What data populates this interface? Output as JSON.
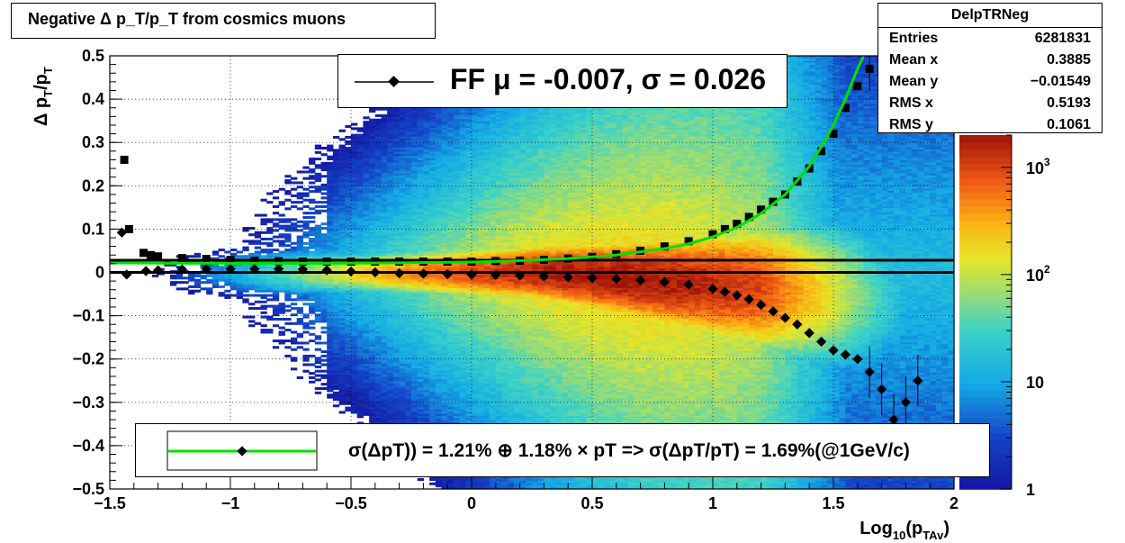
{
  "title": "Negative Δ p_T/p_T from cosmics muons",
  "stats": {
    "name": "DelpTRNeg",
    "rows": [
      {
        "label": "Entries",
        "value": "6281831"
      },
      {
        "label": "Mean x",
        "value": "0.3885"
      },
      {
        "label": "Mean y",
        "value": "−0.01549"
      },
      {
        "label": "RMS x",
        "value": "0.5193"
      },
      {
        "label": "RMS y",
        "value": "0.1061"
      }
    ]
  },
  "legend_top": "FF μ = -0.007, σ =   0.026",
  "legend_bottom": "σ(ΔpT)) =  1.21% ⊕  1.18% × pT => σ(ΔpT/pT) =  1.69%(@1GeV/c)",
  "colors": {
    "fit_line": "#00e000",
    "markers": "#000000",
    "frame": "#000000"
  },
  "chart_data": {
    "type": "heatmap",
    "xlabel": "Log10(pTAv)",
    "ylabel": "Δ pT/pT",
    "xlim": [
      -1.5,
      2
    ],
    "ylim": [
      -0.5,
      0.5
    ],
    "x_ticks": [
      {
        "v": -1.5,
        "label": "−1.5"
      },
      {
        "v": -1,
        "label": "−1"
      },
      {
        "v": -0.5,
        "label": "−0.5"
      },
      {
        "v": 0,
        "label": "0"
      },
      {
        "v": 0.5,
        "label": "0.5"
      },
      {
        "v": 1,
        "label": "1"
      },
      {
        "v": 1.5,
        "label": "1.5"
      },
      {
        "v": 2,
        "label": "2"
      }
    ],
    "y_ticks": [
      {
        "v": 0.5,
        "label": "0.5"
      },
      {
        "v": 0.4,
        "label": "0.4"
      },
      {
        "v": 0.3,
        "label": "0.3"
      },
      {
        "v": 0.2,
        "label": "0.2"
      },
      {
        "v": 0.1,
        "label": "0.1"
      },
      {
        "v": 0,
        "label": "0"
      },
      {
        "v": -0.1,
        "label": "−0.1"
      },
      {
        "v": -0.2,
        "label": "−0.2"
      },
      {
        "v": -0.3,
        "label": "−0.3"
      },
      {
        "v": -0.4,
        "label": "−0.4"
      },
      {
        "v": -0.5,
        "label": "−0.5"
      }
    ],
    "z_scale": "log",
    "z_range": [
      1,
      2000
    ],
    "z_ticks": [
      {
        "v": 1,
        "label": "1"
      },
      {
        "v": 10,
        "label": "10"
      },
      {
        "v": 100,
        "label": "10^2"
      },
      {
        "v": 1000,
        "label": "10^3"
      }
    ],
    "grid": true,
    "horizontal_lines": [
      0.028,
      0
    ],
    "sigma_points": [
      [
        -1.44,
        0.26
      ],
      [
        -1.42,
        0.1
      ],
      [
        -1.36,
        0.045
      ],
      [
        -1.33,
        0.04
      ],
      [
        -1.3,
        0.037
      ],
      [
        -1.2,
        0.033
      ],
      [
        -1.1,
        0.031
      ],
      [
        -1.0,
        0.029
      ],
      [
        -0.9,
        0.027
      ],
      [
        -0.8,
        0.026
      ],
      [
        -0.7,
        0.025
      ],
      [
        -0.6,
        0.025
      ],
      [
        -0.5,
        0.025
      ],
      [
        -0.4,
        0.025
      ],
      [
        -0.3,
        0.025
      ],
      [
        -0.2,
        0.025
      ],
      [
        -0.1,
        0.025
      ],
      [
        0.0,
        0.025
      ],
      [
        0.1,
        0.026
      ],
      [
        0.2,
        0.027
      ],
      [
        0.3,
        0.029
      ],
      [
        0.4,
        0.032
      ],
      [
        0.5,
        0.036
      ],
      [
        0.6,
        0.042
      ],
      [
        0.7,
        0.05
      ],
      [
        0.8,
        0.06
      ],
      [
        0.9,
        0.072
      ],
      [
        1.0,
        0.088
      ],
      [
        1.05,
        0.1
      ],
      [
        1.1,
        0.112
      ],
      [
        1.15,
        0.128
      ],
      [
        1.2,
        0.145
      ],
      [
        1.25,
        0.163
      ],
      [
        1.3,
        0.18
      ],
      [
        1.35,
        0.21
      ],
      [
        1.4,
        0.24
      ],
      [
        1.45,
        0.28
      ],
      [
        1.5,
        0.32
      ],
      [
        1.55,
        0.38
      ],
      [
        1.6,
        0.43
      ],
      [
        1.65,
        0.47
      ],
      [
        1.7,
        0.49
      ],
      [
        1.75,
        0.5
      ]
    ],
    "mean_points": [
      [
        -1.45,
        0.092
      ],
      [
        -1.43,
        -0.005
      ],
      [
        -1.35,
        0.003
      ],
      [
        -1.3,
        0.005
      ],
      [
        -1.2,
        0.007
      ],
      [
        -1.1,
        0.008
      ],
      [
        -1.0,
        0.008
      ],
      [
        -0.9,
        0.008
      ],
      [
        -0.8,
        0.008
      ],
      [
        -0.7,
        0.007
      ],
      [
        -0.6,
        0.005
      ],
      [
        -0.5,
        0.002
      ],
      [
        -0.4,
        0.0
      ],
      [
        -0.3,
        -0.002
      ],
      [
        -0.2,
        -0.003
      ],
      [
        -0.1,
        -0.004
      ],
      [
        0.0,
        -0.005
      ],
      [
        0.1,
        -0.006
      ],
      [
        0.2,
        -0.007
      ],
      [
        0.3,
        -0.009
      ],
      [
        0.4,
        -0.011
      ],
      [
        0.5,
        -0.013
      ],
      [
        0.6,
        -0.015
      ],
      [
        0.7,
        -0.018
      ],
      [
        0.8,
        -0.022
      ],
      [
        0.9,
        -0.028
      ],
      [
        1.0,
        -0.038
      ],
      [
        1.05,
        -0.045
      ],
      [
        1.1,
        -0.053
      ],
      [
        1.15,
        -0.062
      ],
      [
        1.2,
        -0.075
      ],
      [
        1.25,
        -0.09
      ],
      [
        1.3,
        -0.105
      ],
      [
        1.35,
        -0.12
      ],
      [
        1.4,
        -0.14
      ],
      [
        1.45,
        -0.16
      ],
      [
        1.5,
        -0.18
      ],
      [
        1.55,
        -0.19
      ],
      [
        1.6,
        -0.2
      ],
      [
        1.65,
        -0.23
      ],
      [
        1.7,
        -0.27
      ],
      [
        1.75,
        -0.34
      ],
      [
        1.8,
        -0.3
      ],
      [
        1.85,
        -0.25
      ]
    ],
    "fit_curve": [
      [
        -1.5,
        0.022
      ],
      [
        -1.2,
        0.021
      ],
      [
        -0.9,
        0.021
      ],
      [
        -0.6,
        0.021
      ],
      [
        -0.3,
        0.022
      ],
      [
        0.0,
        0.024
      ],
      [
        0.2,
        0.027
      ],
      [
        0.4,
        0.032
      ],
      [
        0.6,
        0.04
      ],
      [
        0.8,
        0.055
      ],
      [
        0.9,
        0.066
      ],
      [
        1.0,
        0.082
      ],
      [
        1.1,
        0.104
      ],
      [
        1.2,
        0.136
      ],
      [
        1.3,
        0.18
      ],
      [
        1.4,
        0.245
      ],
      [
        1.45,
        0.29
      ],
      [
        1.5,
        0.34
      ],
      [
        1.55,
        0.4
      ],
      [
        1.6,
        0.47
      ],
      [
        1.625,
        0.5
      ]
    ]
  }
}
